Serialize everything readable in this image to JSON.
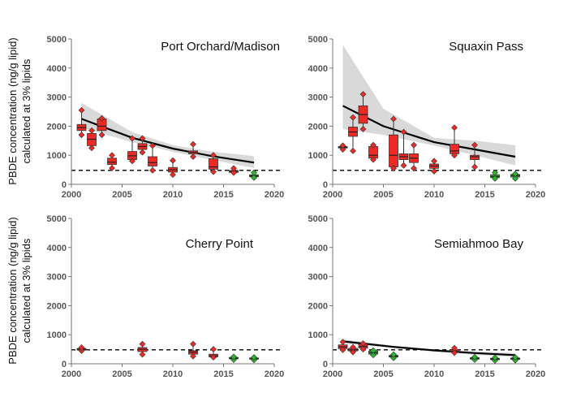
{
  "figure": {
    "ylabel_line1": "PBDE concentration (ng/g lipid)",
    "ylabel_line2": "calculated at 3% lipids"
  },
  "colors": {
    "above": "#ee2a24",
    "below": "#2db52d",
    "trend_band": "#d9d9d9",
    "trend_line": "#000000",
    "threshold": "#000000",
    "axis": "#777777"
  },
  "chart_data": [
    {
      "type": "box",
      "title": "Port Orchard/Madison",
      "xlim": [
        2000,
        2020
      ],
      "ylim": [
        0,
        5000
      ],
      "xticks": [
        2000,
        2005,
        2010,
        2015,
        2020
      ],
      "yticks": [
        0,
        1000,
        2000,
        3000,
        4000,
        5000
      ],
      "grid": false,
      "threshold": 480,
      "boxes": [
        {
          "x": 2001,
          "min": 1700,
          "q1": 1850,
          "median": 1950,
          "q3": 2060,
          "max": 2550,
          "group": "above"
        },
        {
          "x": 2002,
          "min": 1250,
          "q1": 1330,
          "median": 1550,
          "q3": 1750,
          "max": 1850,
          "group": "above"
        },
        {
          "x": 2003,
          "min": 1700,
          "q1": 1850,
          "median": 2000,
          "q3": 2250,
          "max": 2270,
          "group": "above"
        },
        {
          "x": 2004,
          "min": 560,
          "q1": 680,
          "median": 760,
          "q3": 900,
          "max": 1000,
          "group": "above"
        },
        {
          "x": 2006,
          "min": 800,
          "q1": 850,
          "median": 980,
          "q3": 1130,
          "max": 1580,
          "group": "above"
        },
        {
          "x": 2007,
          "min": 1100,
          "q1": 1200,
          "median": 1300,
          "q3": 1400,
          "max": 1580,
          "group": "above"
        },
        {
          "x": 2008,
          "min": 480,
          "q1": 630,
          "median": 750,
          "q3": 950,
          "max": 1330,
          "group": "above"
        },
        {
          "x": 2010,
          "min": 330,
          "q1": 420,
          "median": 500,
          "q3": 580,
          "max": 820,
          "group": "above"
        },
        {
          "x": 2012,
          "min": 950,
          "q1": 1050,
          "median": 1100,
          "q3": 1150,
          "max": 1380,
          "group": "above"
        },
        {
          "x": 2014,
          "min": 430,
          "q1": 520,
          "median": 600,
          "q3": 880,
          "max": 1000,
          "group": "above"
        },
        {
          "x": 2016,
          "min": 400,
          "q1": 410,
          "median": 440,
          "q3": 480,
          "max": 550,
          "group": "above"
        },
        {
          "x": 2018,
          "min": 230,
          "q1": 260,
          "median": 290,
          "q3": 330,
          "max": 400,
          "group": "below"
        }
      ],
      "trend": {
        "x": [
          2001,
          2006,
          2010,
          2014,
          2018
        ],
        "y": [
          2250,
          1600,
          1230,
          960,
          750
        ],
        "lower": [
          1950,
          1450,
          1120,
          830,
          560
        ],
        "upper": [
          2800,
          1800,
          1350,
          1120,
          970
        ]
      }
    },
    {
      "type": "box",
      "title": "Squaxin Pass",
      "xlim": [
        2000,
        2020
      ],
      "ylim": [
        0,
        5000
      ],
      "xticks": [
        2000,
        2005,
        2010,
        2015,
        2020
      ],
      "yticks": [
        0,
        1000,
        2000,
        3000,
        4000,
        5000
      ],
      "grid": false,
      "threshold": 480,
      "boxes": [
        {
          "x": 2001,
          "min": 1200,
          "q1": 1250,
          "median": 1270,
          "q3": 1300,
          "max": 1330,
          "group": "above"
        },
        {
          "x": 2002,
          "min": 1150,
          "q1": 1650,
          "median": 1800,
          "q3": 1970,
          "max": 2300,
          "group": "above"
        },
        {
          "x": 2003,
          "min": 1900,
          "q1": 2100,
          "median": 2400,
          "q3": 2700,
          "max": 3100,
          "group": "above"
        },
        {
          "x": 2004,
          "min": 850,
          "q1": 900,
          "median": 1000,
          "q3": 1300,
          "max": 1350,
          "group": "above"
        },
        {
          "x": 2006,
          "min": 550,
          "q1": 600,
          "median": 1000,
          "q3": 1700,
          "max": 2250,
          "group": "above"
        },
        {
          "x": 2007,
          "min": 650,
          "q1": 850,
          "median": 950,
          "q3": 1050,
          "max": 1800,
          "group": "above"
        },
        {
          "x": 2008,
          "min": 550,
          "q1": 750,
          "median": 900,
          "q3": 1050,
          "max": 1350,
          "group": "above"
        },
        {
          "x": 2010,
          "min": 450,
          "q1": 550,
          "median": 630,
          "q3": 700,
          "max": 800,
          "group": "above"
        },
        {
          "x": 2012,
          "min": 1000,
          "q1": 1050,
          "median": 1150,
          "q3": 1380,
          "max": 1950,
          "group": "above"
        },
        {
          "x": 2014,
          "min": 600,
          "q1": 850,
          "median": 950,
          "q3": 1000,
          "max": 1350,
          "group": "above"
        },
        {
          "x": 2016,
          "min": 200,
          "q1": 230,
          "median": 270,
          "q3": 330,
          "max": 400,
          "group": "below"
        },
        {
          "x": 2018,
          "min": 200,
          "q1": 250,
          "median": 300,
          "q3": 340,
          "max": 360,
          "group": "below"
        }
      ],
      "trend": {
        "x": [
          2001,
          2005,
          2010,
          2014,
          2018
        ],
        "y": [
          2700,
          2000,
          1450,
          1200,
          950
        ],
        "lower": [
          1900,
          1700,
          1330,
          1000,
          650
        ],
        "upper": [
          4800,
          2600,
          1600,
          1500,
          1350
        ]
      }
    },
    {
      "type": "box",
      "title": "Cherry Point",
      "xlim": [
        2000,
        2020
      ],
      "ylim": [
        0,
        5000
      ],
      "xticks": [
        2000,
        2005,
        2010,
        2015,
        2020
      ],
      "yticks": [
        0,
        1000,
        2000,
        3000,
        4000,
        5000
      ],
      "grid": false,
      "threshold": 480,
      "boxes": [
        {
          "x": 2001,
          "min": 450,
          "q1": 470,
          "median": 500,
          "q3": 530,
          "max": 560,
          "group": "above"
        },
        {
          "x": 2007,
          "min": 320,
          "q1": 420,
          "median": 500,
          "q3": 560,
          "max": 680,
          "group": "above"
        },
        {
          "x": 2012,
          "min": 260,
          "q1": 330,
          "median": 400,
          "q3": 450,
          "max": 680,
          "group": "above"
        },
        {
          "x": 2014,
          "min": 220,
          "q1": 240,
          "median": 270,
          "q3": 330,
          "max": 500,
          "group": "above"
        },
        {
          "x": 2016,
          "min": 140,
          "q1": 170,
          "median": 190,
          "q3": 220,
          "max": 240,
          "group": "below"
        },
        {
          "x": 2018,
          "min": 130,
          "q1": 160,
          "median": 190,
          "q3": 200,
          "max": 220,
          "group": "below"
        }
      ]
    },
    {
      "type": "box",
      "title": "Semiahmoo Bay",
      "xlim": [
        2000,
        2020
      ],
      "ylim": [
        0,
        5000
      ],
      "xticks": [
        2000,
        2005,
        2010,
        2015,
        2020
      ],
      "yticks": [
        0,
        1000,
        2000,
        3000,
        4000,
        5000
      ],
      "grid": false,
      "threshold": 480,
      "boxes": [
        {
          "x": 2001,
          "min": 480,
          "q1": 520,
          "median": 580,
          "q3": 650,
          "max": 750,
          "group": "above"
        },
        {
          "x": 2002,
          "min": 400,
          "q1": 440,
          "median": 480,
          "q3": 530,
          "max": 570,
          "group": "above"
        },
        {
          "x": 2003,
          "min": 500,
          "q1": 540,
          "median": 600,
          "q3": 680,
          "max": 700,
          "group": "above"
        },
        {
          "x": 2004,
          "min": 300,
          "q1": 330,
          "median": 380,
          "q3": 440,
          "max": 460,
          "group": "below"
        },
        {
          "x": 2006,
          "min": 200,
          "q1": 230,
          "median": 260,
          "q3": 290,
          "max": 320,
          "group": "below"
        },
        {
          "x": 2012,
          "min": 380,
          "q1": 400,
          "median": 430,
          "q3": 480,
          "max": 540,
          "group": "above"
        },
        {
          "x": 2014,
          "min": 140,
          "q1": 160,
          "median": 190,
          "q3": 210,
          "max": 230,
          "group": "below"
        },
        {
          "x": 2016,
          "min": 110,
          "q1": 140,
          "median": 170,
          "q3": 190,
          "max": 210,
          "group": "below"
        },
        {
          "x": 2018,
          "min": 120,
          "q1": 150,
          "median": 180,
          "q3": 200,
          "max": 220,
          "group": "below"
        }
      ],
      "trend": {
        "x": [
          2001,
          2006,
          2010,
          2014,
          2018
        ],
        "y": [
          770,
          580,
          460,
          370,
          300
        ],
        "lower": [
          700,
          540,
          420,
          310,
          230
        ],
        "upper": [
          840,
          620,
          500,
          430,
          370
        ]
      }
    }
  ]
}
